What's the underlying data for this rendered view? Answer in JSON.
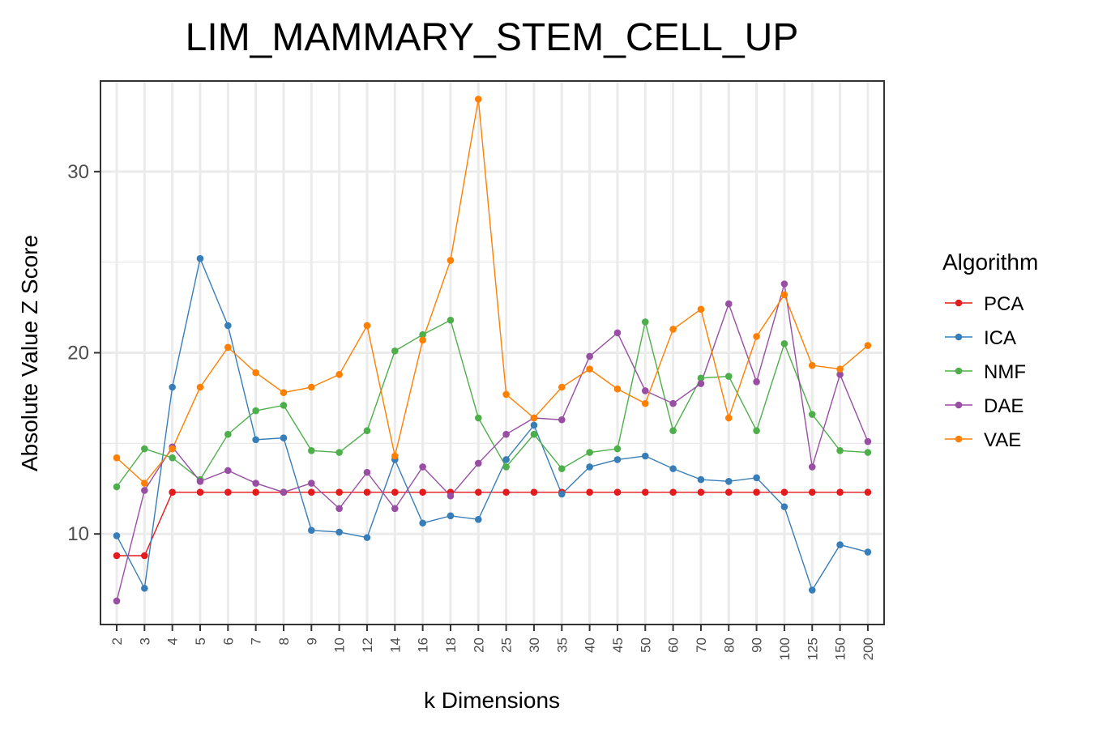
{
  "chart_data": {
    "type": "line",
    "title": "LIM_MAMMARY_STEM_CELL_UP",
    "xlabel": "k Dimensions",
    "ylabel": "Absolute Value Z Score",
    "categories": [
      "2",
      "3",
      "4",
      "5",
      "6",
      "7",
      "8",
      "9",
      "10",
      "12",
      "14",
      "16",
      "18",
      "20",
      "25",
      "30",
      "35",
      "40",
      "45",
      "50",
      "60",
      "70",
      "80",
      "90",
      "100",
      "125",
      "150",
      "200"
    ],
    "ylim": [
      5,
      35
    ],
    "yticks": [
      10,
      20,
      30
    ],
    "grid": true,
    "legend_title": "Algorithm",
    "legend_position": "right",
    "series": [
      {
        "name": "PCA",
        "color": "#E41A1C",
        "values": [
          8.8,
          8.8,
          12.3,
          12.3,
          12.3,
          12.3,
          12.3,
          12.3,
          12.3,
          12.3,
          12.3,
          12.3,
          12.3,
          12.3,
          12.3,
          12.3,
          12.3,
          12.3,
          12.3,
          12.3,
          12.3,
          12.3,
          12.3,
          12.3,
          12.3,
          12.3,
          12.3,
          12.3
        ]
      },
      {
        "name": "ICA",
        "color": "#377EB8",
        "values": [
          9.9,
          7.0,
          18.1,
          25.2,
          21.5,
          15.2,
          15.3,
          10.2,
          10.1,
          9.8,
          14.1,
          10.6,
          11.0,
          10.8,
          14.1,
          16.0,
          12.2,
          13.7,
          14.1,
          14.3,
          13.6,
          13.0,
          12.9,
          13.1,
          11.5,
          6.9,
          9.4,
          9.0
        ]
      },
      {
        "name": "NMF",
        "color": "#4DAF4A",
        "values": [
          12.6,
          14.7,
          14.2,
          13.0,
          15.5,
          16.8,
          17.1,
          14.6,
          14.5,
          15.7,
          20.1,
          21.0,
          21.8,
          16.4,
          13.7,
          15.5,
          13.6,
          14.5,
          14.7,
          21.7,
          15.7,
          18.6,
          18.7,
          15.7,
          20.5,
          16.6,
          14.6,
          14.5
        ]
      },
      {
        "name": "DAE",
        "color": "#984EA3",
        "values": [
          6.3,
          12.4,
          14.8,
          12.9,
          13.5,
          12.8,
          12.3,
          12.8,
          11.4,
          13.4,
          11.4,
          13.7,
          12.1,
          13.9,
          15.5,
          16.4,
          16.3,
          19.8,
          21.1,
          17.9,
          17.2,
          18.3,
          22.7,
          18.4,
          23.8,
          13.7,
          18.8,
          15.1
        ]
      },
      {
        "name": "VAE",
        "color": "#FF7F00",
        "values": [
          14.2,
          12.8,
          14.7,
          18.1,
          20.3,
          18.9,
          17.8,
          18.1,
          18.8,
          21.5,
          14.3,
          20.7,
          25.1,
          34.0,
          17.7,
          16.4,
          18.1,
          19.1,
          18.0,
          17.2,
          21.3,
          22.4,
          16.4,
          20.9,
          23.2,
          19.3,
          19.1,
          20.4
        ]
      }
    ]
  }
}
